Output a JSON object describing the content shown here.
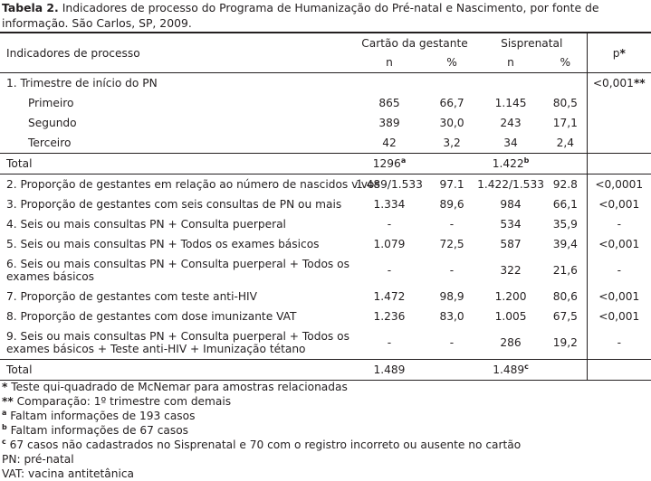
{
  "caption": {
    "label": "Tabela 2.",
    "text": " Indicadores de processo do Programa de Humanização do Pré-natal e Nascimento, por fonte de informação. São Carlos, SP, 2009."
  },
  "header": {
    "indicators": "Indicadores de processo",
    "source1": "Cartão da gestante",
    "source2": "Sisprenatal",
    "p": "p",
    "p_mark": "*",
    "n1": "n",
    "pct1": "%",
    "n2": "n",
    "pct2": "%"
  },
  "rows": {
    "r1": {
      "label": "1. Trimestre de início do PN",
      "p": "<0,001",
      "p_mark": "**"
    },
    "r1a": {
      "label": "Primeiro",
      "n1": "865",
      "pct1": "66,7",
      "n2": "1.145",
      "pct2": "80,5"
    },
    "r1b": {
      "label": "Segundo",
      "n1": "389",
      "pct1": "30,0",
      "n2": "243",
      "pct2": "17,1"
    },
    "r1c": {
      "label": "Terceiro",
      "n1": "42",
      "pct1": "3,2",
      "n2": "34",
      "pct2": "2,4"
    },
    "total1": {
      "label": "Total",
      "n1": "1296",
      "n1_mark": "a",
      "n2": "1.422",
      "n2_mark": "b"
    },
    "r2": {
      "label": "2. Proporção de gestantes em relação ao número de nascidos vivos",
      "n1": "1.489/1.533",
      "pct1": "97.1",
      "n2": "1.422/1.533",
      "pct2": "92.8",
      "p": "<0,0001"
    },
    "r3": {
      "label": "3. Proporção de gestantes com seis consultas de PN ou mais",
      "n1": "1.334",
      "pct1": "89,6",
      "n2": "984",
      "pct2": "66,1",
      "p": "<0,001"
    },
    "r4": {
      "label": "4. Seis ou mais consultas PN + Consulta puerperal",
      "n1": "-",
      "pct1": "-",
      "n2": "534",
      "pct2": "35,9",
      "p": "-"
    },
    "r5": {
      "label": "5. Seis ou mais consultas PN + Todos os exames básicos",
      "n1": "1.079",
      "pct1": "72,5",
      "n2": "587",
      "pct2": "39,4",
      "p": "<0,001"
    },
    "r6": {
      "label": "6. Seis ou mais consultas PN + Consulta puerperal + Todos os exames básicos",
      "n1": "-",
      "pct1": "-",
      "n2": "322",
      "pct2": "21,6",
      "p": "-"
    },
    "r7": {
      "label": "7. Proporção de gestantes com teste anti-HIV",
      "n1": "1.472",
      "pct1": "98,9",
      "n2": "1.200",
      "pct2": "80,6",
      "p": "<0,001"
    },
    "r8": {
      "label": "8. Proporção de gestantes com dose imunizante VAT",
      "n1": "1.236",
      "pct1": "83,0",
      "n2": "1.005",
      "pct2": "67,5",
      "p": "<0,001"
    },
    "r9": {
      "label": "9. Seis ou mais consultas PN + Consulta puerperal + Todos os exames básicos + Teste anti-HIV + Imunização tétano",
      "n1": "-",
      "pct1": "-",
      "n2": "286",
      "pct2": "19,2",
      "p": "-"
    },
    "total2": {
      "label": "Total",
      "n1": "1.489",
      "n2": "1.489",
      "n2_mark": "c"
    }
  },
  "notes": {
    "n1_mark": "*",
    "n1": " Teste qui-quadrado de McNemar para amostras relacionadas",
    "n2_mark": "**",
    "n2": " Comparação: 1º trimestre com demais",
    "n3_mark": "a",
    "n3": " Faltam informações de 193 casos",
    "n4_mark": "b",
    "n4": " Faltam informações de 67 casos",
    "n5_mark": "c",
    "n5": " 67 casos não cadastrados no Sisprenatal e 70 com o registro incorreto ou ausente no cartão",
    "n6": "PN: pré-natal",
    "n7": "VAT: vacina antitetânica"
  }
}
